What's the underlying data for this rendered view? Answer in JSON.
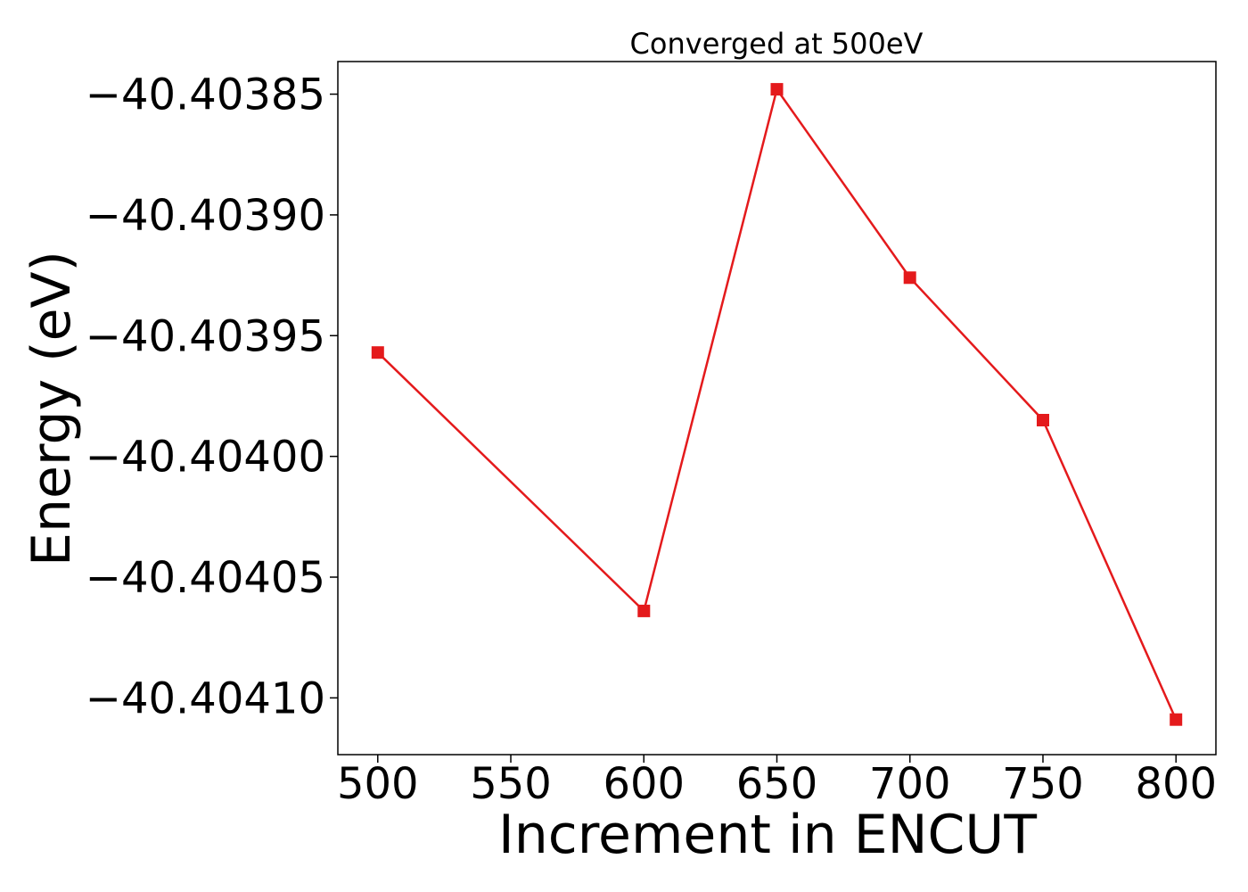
{
  "chart_data": {
    "type": "line",
    "title": "Converged at 500eV",
    "xlabel": "Increment in ENCUT",
    "ylabel": "Energy (eV)",
    "x": [
      500,
      600,
      650,
      700,
      750,
      800
    ],
    "series": [
      {
        "values": [
          -40.403957,
          -40.404064,
          -40.403848,
          -40.403926,
          -40.403985,
          -40.404109
        ],
        "color": "#e41a1c",
        "marker": "square"
      }
    ],
    "xlim": [
      485,
      815
    ],
    "ylim": [
      -40.4041235,
      -40.4038365
    ],
    "xticks": [
      500,
      550,
      600,
      650,
      700,
      750,
      800
    ],
    "xtick_labels": [
      "500",
      "550",
      "600",
      "650",
      "700",
      "750",
      "800"
    ],
    "yticks": [
      -40.40385,
      -40.4039,
      -40.40395,
      -40.404,
      -40.40405,
      -40.4041
    ],
    "ytick_labels": [
      "−40.40385",
      "−40.40390",
      "−40.40395",
      "−40.40400",
      "−40.40405",
      "−40.40410"
    ],
    "grid": false,
    "legend": false
  }
}
